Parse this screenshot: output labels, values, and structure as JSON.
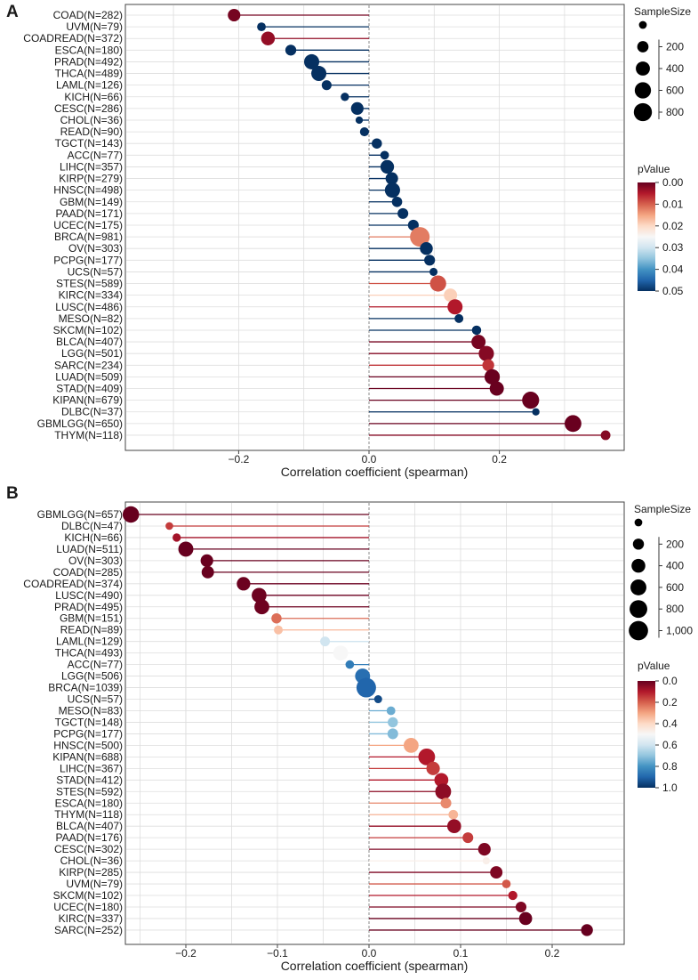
{
  "colors": {
    "colorscale": [
      "#67001f",
      "#b2182b",
      "#d6604d",
      "#f4a582",
      "#fddbc7",
      "#f7f7f7",
      "#d1e5f0",
      "#92c5de",
      "#4393c3",
      "#2166ac",
      "#053061"
    ],
    "grid": "#dddddd",
    "zero_line": "#888888",
    "frame": "#444444"
  },
  "chart_data": [
    {
      "panel": "A",
      "type": "scatter",
      "subtype": "lollipop",
      "xlabel": "Correlation coefficient (spearman)",
      "xlim": [
        -0.37,
        0.38
      ],
      "xticks": [
        -0.2,
        0.0,
        0.2
      ],
      "xtick_labels": [
        "−0.2",
        "0.0",
        "0.2"
      ],
      "size_legend": {
        "title": "SampleSize",
        "ticks": [
          200,
          400,
          600,
          800
        ],
        "tick_labels": [
          "200",
          "400",
          "600",
          "800"
        ],
        "max": 981
      },
      "color_legend": {
        "title": "pValue",
        "domain": [
          0,
          0.05
        ],
        "ticks": [
          0,
          0.01,
          0.02,
          0.03,
          0.04,
          0.05
        ],
        "tick_labels": [
          "0.00",
          "0.01",
          "0.02",
          "0.03",
          "0.04",
          "0.05"
        ]
      },
      "categories": [
        "COAD(N=282)",
        "UVM(N=79)",
        "COADREAD(N=372)",
        "ESCA(N=180)",
        "PRAD(N=492)",
        "THCA(N=489)",
        "LAML(N=126)",
        "KICH(N=66)",
        "CESC(N=286)",
        "CHOL(N=36)",
        "READ(N=90)",
        "TGCT(N=143)",
        "ACC(N=77)",
        "LIHC(N=357)",
        "KIRP(N=279)",
        "HNSC(N=498)",
        "GBM(N=149)",
        "PAAD(N=171)",
        "UCEC(N=175)",
        "BRCA(N=981)",
        "OV(N=303)",
        "PCPG(N=177)",
        "UCS(N=57)",
        "STES(N=589)",
        "KIRC(N=334)",
        "LUSC(N=486)",
        "MESO(N=82)",
        "SKCM(N=102)",
        "BLCA(N=407)",
        "LGG(N=501)",
        "SARC(N=234)",
        "LUAD(N=509)",
        "STAD(N=409)",
        "KIPAN(N=679)",
        "DLBC(N=37)",
        "GBMLGG(N=650)",
        "THYM(N=118)"
      ],
      "values": [
        -0.207,
        -0.165,
        -0.155,
        -0.12,
        -0.088,
        -0.077,
        -0.065,
        -0.037,
        -0.018,
        -0.015,
        -0.007,
        0.012,
        0.024,
        0.028,
        0.035,
        0.036,
        0.043,
        0.052,
        0.068,
        0.078,
        0.088,
        0.093,
        0.099,
        0.106,
        0.125,
        0.132,
        0.138,
        0.165,
        0.168,
        0.18,
        0.183,
        0.189,
        0.196,
        0.248,
        0.256,
        0.313,
        0.363
      ],
      "sample_sizes": [
        282,
        79,
        372,
        180,
        492,
        489,
        126,
        66,
        286,
        36,
        90,
        143,
        77,
        357,
        279,
        498,
        149,
        171,
        175,
        981,
        303,
        177,
        57,
        589,
        334,
        486,
        82,
        102,
        407,
        501,
        234,
        509,
        409,
        679,
        37,
        650,
        118
      ],
      "p_values": [
        0.001,
        0.05,
        0.003,
        0.05,
        0.05,
        0.05,
        0.05,
        0.05,
        0.05,
        0.05,
        0.05,
        0.05,
        0.05,
        0.05,
        0.05,
        0.05,
        0.05,
        0.05,
        0.05,
        0.012,
        0.05,
        0.05,
        0.05,
        0.009,
        0.019,
        0.005,
        0.05,
        0.05,
        0.001,
        0.002,
        0.007,
        0.0001,
        0.0001,
        0.0001,
        0.05,
        0.0001,
        0.002
      ]
    },
    {
      "panel": "B",
      "type": "scatter",
      "subtype": "lollipop",
      "xlabel": "Correlation coefficient (spearman)",
      "xlim": [
        -0.275,
        0.265
      ],
      "xticks": [
        -0.2,
        -0.1,
        0.0,
        0.1,
        0.2
      ],
      "xtick_labels": [
        "−0.2",
        "−0.1",
        "0.0",
        "0.1",
        "0.2"
      ],
      "size_legend": {
        "title": "SampleSize",
        "ticks": [
          200,
          400,
          600,
          800,
          1000
        ],
        "tick_labels": [
          "200",
          "400",
          "600",
          "800",
          "1,000"
        ],
        "max": 1039
      },
      "color_legend": {
        "title": "pValue",
        "domain": [
          0,
          1
        ],
        "ticks": [
          0,
          0.2,
          0.4,
          0.6,
          0.8,
          1.0
        ],
        "tick_labels": [
          "0.0",
          "0.2",
          "0.4",
          "0.6",
          "0.8",
          "1.0"
        ]
      },
      "categories": [
        "GBMLGG(N=657)",
        "DLBC(N=47)",
        "KICH(N=66)",
        "LUAD(N=511)",
        "OV(N=303)",
        "COAD(N=285)",
        "COADREAD(N=374)",
        "LUSC(N=490)",
        "PRAD(N=495)",
        "GBM(N=151)",
        "READ(N=89)",
        "LAML(N=129)",
        "THCA(N=493)",
        "ACC(N=77)",
        "LGG(N=506)",
        "BRCA(N=1039)",
        "UCS(N=57)",
        "MESO(N=83)",
        "TGCT(N=148)",
        "PCPG(N=177)",
        "HNSC(N=500)",
        "KIPAN(N=688)",
        "LIHC(N=367)",
        "STAD(N=412)",
        "STES(N=592)",
        "ESCA(N=180)",
        "THYM(N=118)",
        "BLCA(N=407)",
        "PAAD(N=176)",
        "CESC(N=302)",
        "CHOL(N=36)",
        "KIRP(N=285)",
        "UVM(N=79)",
        "SKCM(N=102)",
        "UCEC(N=180)",
        "KIRC(N=337)",
        "SARC(N=252)"
      ],
      "values": [
        -0.26,
        -0.218,
        -0.21,
        -0.2,
        -0.177,
        -0.176,
        -0.137,
        -0.12,
        -0.117,
        -0.101,
        -0.099,
        -0.048,
        -0.031,
        -0.021,
        -0.007,
        -0.003,
        0.01,
        0.024,
        0.026,
        0.026,
        0.046,
        0.063,
        0.07,
        0.079,
        0.081,
        0.084,
        0.092,
        0.093,
        0.108,
        0.126,
        0.128,
        0.139,
        0.15,
        0.157,
        0.166,
        0.171,
        0.238
      ],
      "sample_sizes": [
        657,
        47,
        66,
        511,
        303,
        285,
        374,
        490,
        495,
        151,
        89,
        129,
        493,
        77,
        506,
        1039,
        57,
        83,
        148,
        177,
        500,
        688,
        367,
        412,
        592,
        180,
        118,
        407,
        176,
        302,
        36,
        285,
        79,
        102,
        180,
        337,
        252
      ],
      "p_values": [
        0.0,
        0.15,
        0.08,
        0.0,
        0.002,
        0.003,
        0.007,
        0.008,
        0.009,
        0.22,
        0.35,
        0.6,
        0.5,
        0.85,
        0.88,
        0.9,
        0.95,
        0.75,
        0.7,
        0.72,
        0.3,
        0.1,
        0.15,
        0.1,
        0.05,
        0.26,
        0.33,
        0.06,
        0.15,
        0.03,
        0.47,
        0.03,
        0.19,
        0.1,
        0.03,
        0.002,
        0.0
      ]
    }
  ],
  "panels": [
    {
      "label": "A",
      "x_title": "Correlation coefficient (spearman)",
      "size_legend_title": "SampleSize",
      "color_legend_title": "pValue"
    },
    {
      "label": "B",
      "x_title": "Correlation coefficient (spearman)",
      "size_legend_title": "SampleSize",
      "color_legend_title": "pValue"
    }
  ]
}
